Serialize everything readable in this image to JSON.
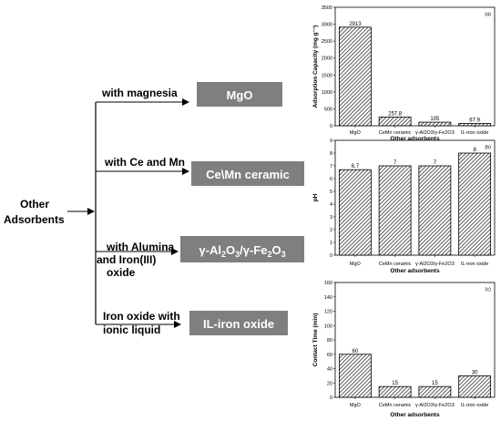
{
  "diagram": {
    "root_line1": "Other",
    "root_line2": "Adsorbents",
    "branches": [
      {
        "label_lines": [
          "with magnesia"
        ],
        "box": "MgO"
      },
      {
        "label_lines": [
          "with Ce and Mn"
        ],
        "box": "Ce\\Mn ceramic"
      },
      {
        "label_lines": [
          "with Alumina",
          "and  Iron(III)",
          "oxide"
        ],
        "box": "γ-Al2O3/γ-Fe2O3"
      },
      {
        "label_lines": [
          "Iron oxide with",
          "ionic liquid"
        ],
        "box": "IL-iron oxide"
      }
    ],
    "box_color": "#7f7f7f"
  },
  "chart_data": [
    {
      "type": "bar",
      "panel": "(a)",
      "categories": [
        "MgO",
        "CeMn ceramic",
        "γ-Al2O3/γ-Fe2O3",
        "IL-iron oxide"
      ],
      "values": [
        2913,
        257.8,
        105,
        67.9
      ],
      "value_labels": [
        "2913",
        "257.8",
        "105",
        "67.9"
      ],
      "xlabel": "Other adsorbents",
      "ylabel": "Adsorption Capacity (mg g⁻¹)",
      "ylim": [
        0,
        3500
      ],
      "yticks": [
        0,
        500,
        1000,
        1500,
        2000,
        2500,
        3000,
        3500
      ],
      "grid": false,
      "bar_fill": "hatched"
    },
    {
      "type": "bar",
      "panel": "(b)",
      "categories": [
        "MgO",
        "CeMn ceramic",
        "γ-Al2O3/γ-Fe2O3",
        "IL-iron oxide"
      ],
      "values": [
        6.7,
        7,
        7,
        8
      ],
      "value_labels": [
        "6.7",
        "7",
        "7",
        "8"
      ],
      "xlabel": "Other adsorbents",
      "ylabel": "pH",
      "ylim": [
        0,
        9
      ],
      "yticks": [
        0,
        1,
        2,
        3,
        4,
        5,
        6,
        7,
        8,
        9
      ],
      "grid": false,
      "bar_fill": "hatched"
    },
    {
      "type": "bar",
      "panel": "(c)",
      "categories": [
        "MgO",
        "CeMn ceramic",
        "γ-Al2O3/γ-Fe2O3",
        "IL-iron oxide"
      ],
      "values": [
        60,
        15,
        15,
        30
      ],
      "value_labels": [
        "60",
        "15",
        "15",
        "30"
      ],
      "xlabel": "Other adsorbents",
      "ylabel": "Contact Time (min)",
      "ylim": [
        0,
        160
      ],
      "yticks": [
        0,
        20,
        40,
        60,
        80,
        100,
        120,
        140,
        160
      ],
      "grid": false,
      "bar_fill": "hatched"
    }
  ]
}
